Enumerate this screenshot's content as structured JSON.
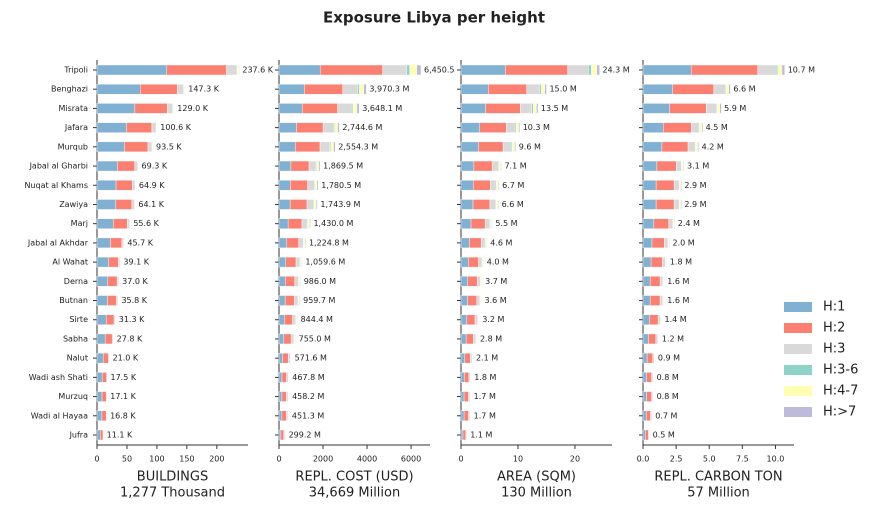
{
  "title": "Exposure Libya per height",
  "chart_data": [
    {
      "type": "bar",
      "horizontal": true,
      "xlabel": "BUILDINGS",
      "xlabel_note": "1,277 Thousand",
      "categories": [
        "Tripoli",
        "Benghazi",
        "Misrata",
        "Jafara",
        "Murqub",
        "Jabal al Gharbi",
        "Nuqat al Khams",
        "Zawiya",
        "Marj",
        "Jabal al Akhdar",
        "Al Wahat",
        "Derna",
        "Butnan",
        "Sirte",
        "Sabha",
        "Nalut",
        "Wadi ash Shati",
        "Murzuq",
        "Wadi al Hayaa",
        "Jufra"
      ],
      "xlim": [
        0,
        252
      ],
      "xticks": [
        0,
        50,
        100,
        150,
        200
      ],
      "series": [
        {
          "name": "H:1",
          "color": "#80b1d3",
          "values": [
            116.4,
            72.2,
            63.2,
            49.3,
            45.8,
            34.0,
            31.8,
            31.4,
            27.2,
            22.4,
            19.2,
            18.1,
            17.5,
            15.3,
            13.6,
            10.3,
            8.6,
            8.4,
            8.2,
            5.4
          ]
        },
        {
          "name": "H:2",
          "color": "#fb8072",
          "values": [
            99.8,
            61.9,
            54.2,
            42.3,
            39.3,
            29.1,
            27.3,
            26.9,
            23.4,
            19.2,
            16.4,
            15.5,
            15.0,
            13.1,
            11.7,
            8.8,
            7.4,
            7.2,
            7.1,
            4.7
          ]
        },
        {
          "name": "H:3",
          "color": "#d9d9d9",
          "values": [
            16.6,
            10.3,
            9.0,
            7.0,
            6.5,
            4.9,
            4.5,
            4.5,
            3.9,
            3.2,
            2.7,
            2.6,
            2.5,
            2.2,
            1.9,
            1.5,
            1.2,
            1.2,
            1.2,
            0.8
          ]
        },
        {
          "name": "H:3-6",
          "color": "#8dd3c7",
          "values": [
            1.2,
            0.7,
            0.6,
            0.5,
            0.5,
            0.3,
            0.3,
            0.3,
            0.3,
            0.2,
            0.2,
            0.2,
            0.2,
            0.2,
            0.1,
            0.1,
            0.1,
            0.1,
            0.1,
            0.1
          ]
        },
        {
          "name": "H:4-7",
          "color": "#ffffb3",
          "values": [
            2.4,
            1.5,
            1.3,
            1.0,
            0.9,
            0.7,
            0.6,
            0.6,
            0.6,
            0.5,
            0.4,
            0.4,
            0.4,
            0.3,
            0.3,
            0.2,
            0.2,
            0.2,
            0.2,
            0.1
          ]
        },
        {
          "name": "H:>7",
          "color": "#bebada",
          "values": [
            1.2,
            0.7,
            0.6,
            0.5,
            0.5,
            0.3,
            0.3,
            0.3,
            0.3,
            0.2,
            0.2,
            0.2,
            0.2,
            0.2,
            0.1,
            0.1,
            0.1,
            0.1,
            0.1,
            0.1
          ]
        }
      ],
      "totals": [
        237.6,
        147.3,
        129.0,
        100.6,
        93.5,
        69.3,
        64.9,
        64.1,
        55.6,
        45.7,
        39.1,
        37.0,
        35.8,
        31.3,
        27.8,
        21.0,
        17.5,
        17.1,
        16.8,
        11.1
      ],
      "total_labels": [
        "237.6 K",
        "147.3 K",
        "129.0 K",
        "100.6 K",
        "93.5 K",
        "69.3 K",
        "64.9 K",
        "64.1 K",
        "55.6 K",
        "45.7 K",
        "39.1 K",
        "37.0 K",
        "35.8 K",
        "31.3 K",
        "27.8 K",
        "21.0 K",
        "17.5 K",
        "17.1 K",
        "16.8 K",
        "11.1 K"
      ]
    },
    {
      "type": "bar",
      "horizontal": true,
      "xlabel": "REPL. COST (USD)",
      "xlabel_note": "34,669 Million",
      "xlim": [
        0,
        6860
      ],
      "xticks": [
        0,
        2000,
        4000,
        6000
      ],
      "series": [
        {
          "values": [
            1870.6,
            1151.4,
            1057.9,
            795.9,
            740.7,
            542.2,
            516.3,
            505.7,
            414.7,
            355.2,
            307.3,
            285.9,
            278.3,
            244.9,
            219.0,
            165.8,
            135.7,
            132.9,
            130.9,
            86.8
          ]
        },
        {
          "values": [
            2838.2,
            1746.9,
            1605.2,
            1207.6,
            1123.9,
            822.6,
            783.4,
            767.3,
            629.2,
            538.9,
            466.2,
            433.8,
            422.3,
            371.5,
            332.2,
            251.5,
            205.8,
            201.6,
            198.6,
            131.6
          ]
        },
        {
          "values": [
            1096.6,
            675.0,
            620.2,
            466.6,
            434.2,
            317.8,
            302.7,
            296.5,
            243.1,
            208.2,
            180.1,
            167.6,
            163.1,
            143.5,
            128.4,
            97.2,
            79.5,
            77.9,
            76.7,
            50.9
          ]
        },
        {
          "values": [
            129.0,
            79.4,
            73.0,
            54.9,
            51.1,
            37.4,
            35.6,
            34.9,
            28.6,
            24.5,
            21.2,
            19.7,
            19.2,
            16.9,
            15.1,
            11.4,
            9.4,
            9.2,
            9.0,
            6.0
          ]
        },
        {
          "values": [
            322.5,
            198.5,
            182.4,
            137.2,
            127.7,
            93.5,
            89.0,
            87.2,
            71.5,
            61.2,
            53.0,
            49.3,
            48.0,
            42.2,
            37.8,
            28.6,
            23.4,
            22.9,
            22.6,
            15.0
          ]
        },
        {
          "values": [
            193.5,
            119.1,
            109.4,
            82.3,
            76.6,
            56.1,
            53.4,
            52.3,
            42.9,
            36.7,
            31.8,
            29.6,
            28.8,
            25.3,
            22.7,
            17.1,
            14.0,
            13.7,
            13.5,
            9.0
          ]
        }
      ],
      "totals": [
        6450.5,
        3970.3,
        3648.1,
        2744.6,
        2554.3,
        1869.5,
        1780.5,
        1743.9,
        1430.0,
        1224.8,
        1059.6,
        986.0,
        959.7,
        844.4,
        755.0,
        571.6,
        467.8,
        458.2,
        451.3,
        299.2
      ],
      "total_labels": [
        "6,450.5",
        "3,970.3 M",
        "3,648.1 M",
        "2,744.6 M",
        "2,554.3 M",
        "1,869.5 M",
        "1,780.5 M",
        "1,743.9 M",
        "1,430.0 M",
        "1,224.8 M",
        "1,059.6 M",
        "986.0 M",
        "959.7 M",
        "844.4 M",
        "755.0 M",
        "571.6 M",
        "467.8 M",
        "458.2 M",
        "451.3 M",
        "299.2 M"
      ]
    },
    {
      "type": "bar",
      "horizontal": true,
      "xlabel": "AREA (SQM)",
      "xlabel_note": "130 Million",
      "xlim": [
        0,
        26.5
      ],
      "xticks": [
        0,
        10,
        20
      ],
      "series": [
        {
          "values": [
            7.78,
            4.8,
            4.32,
            3.3,
            3.07,
            2.27,
            2.14,
            2.11,
            1.76,
            1.47,
            1.28,
            1.18,
            1.15,
            1.02,
            0.9,
            0.67,
            0.58,
            0.54,
            0.54,
            0.35
          ]
        },
        {
          "values": [
            10.94,
            6.75,
            6.08,
            4.64,
            4.32,
            3.2,
            3.02,
            2.97,
            2.48,
            2.07,
            1.8,
            1.67,
            1.62,
            1.44,
            1.26,
            0.95,
            0.81,
            0.77,
            0.77,
            0.5
          ]
        },
        {
          "values": [
            3.65,
            2.25,
            2.03,
            1.55,
            1.44,
            1.07,
            1.01,
            0.99,
            0.83,
            0.69,
            0.6,
            0.56,
            0.54,
            0.48,
            0.42,
            0.32,
            0.27,
            0.26,
            0.26,
            0.17
          ]
        },
        {
          "values": [
            0.49,
            0.3,
            0.27,
            0.21,
            0.19,
            0.14,
            0.13,
            0.13,
            0.11,
            0.09,
            0.08,
            0.07,
            0.07,
            0.06,
            0.06,
            0.04,
            0.04,
            0.03,
            0.03,
            0.02
          ]
        },
        {
          "values": [
            0.97,
            0.6,
            0.54,
            0.41,
            0.38,
            0.28,
            0.27,
            0.26,
            0.22,
            0.18,
            0.16,
            0.15,
            0.14,
            0.13,
            0.11,
            0.08,
            0.07,
            0.07,
            0.07,
            0.04
          ]
        },
        {
          "values": [
            0.49,
            0.3,
            0.27,
            0.21,
            0.19,
            0.14,
            0.13,
            0.13,
            0.11,
            0.09,
            0.08,
            0.07,
            0.07,
            0.06,
            0.06,
            0.04,
            0.04,
            0.03,
            0.03,
            0.02
          ]
        }
      ],
      "totals": [
        24.3,
        15.0,
        13.5,
        10.3,
        9.6,
        7.1,
        6.7,
        6.6,
        5.5,
        4.6,
        4.0,
        3.7,
        3.6,
        3.2,
        2.8,
        2.1,
        1.8,
        1.7,
        1.7,
        1.1
      ],
      "total_labels": [
        "24.3 M",
        "15.0 M",
        "13.5 M",
        "10.3 M",
        "9.6 M",
        "7.1 M",
        "6.7 M",
        "6.6 M",
        "5.5 M",
        "4.6 M",
        "4.0 M",
        "3.7 M",
        "3.6 M",
        "3.2 M",
        "2.8 M",
        "2.1 M",
        "1.8 M",
        "1.7 M",
        "1.7 M",
        "1.1 M"
      ]
    },
    {
      "type": "bar",
      "horizontal": true,
      "xlabel": "REPL. CARBON TON",
      "xlabel_note": "57 Million",
      "xlim": [
        0,
        11.4
      ],
      "xticks": [
        {
          "value": 0,
          "label": "0.0"
        },
        {
          "value": 2.5,
          "label": "2.5"
        },
        {
          "value": 5,
          "label": "5.0"
        },
        {
          "value": 7.5,
          "label": "7.5"
        },
        {
          "value": 10,
          "label": "10.0"
        }
      ],
      "series": [
        {
          "values": [
            3.64,
            2.24,
            2.01,
            1.53,
            1.43,
            1.05,
            0.99,
            0.99,
            0.82,
            0.68,
            0.61,
            0.54,
            0.54,
            0.48,
            0.41,
            0.31,
            0.27,
            0.27,
            0.24,
            0.17
          ]
        },
        {
          "values": [
            5.03,
            3.1,
            2.77,
            2.12,
            1.97,
            1.46,
            1.36,
            1.36,
            1.13,
            0.94,
            0.85,
            0.75,
            0.75,
            0.66,
            0.56,
            0.42,
            0.38,
            0.38,
            0.33,
            0.24
          ]
        },
        {
          "values": [
            1.39,
            0.86,
            0.77,
            0.59,
            0.55,
            0.4,
            0.38,
            0.38,
            0.31,
            0.26,
            0.23,
            0.21,
            0.21,
            0.18,
            0.16,
            0.12,
            0.1,
            0.1,
            0.09,
            0.07
          ]
        },
        {
          "values": [
            0.11,
            0.07,
            0.06,
            0.05,
            0.04,
            0.03,
            0.03,
            0.03,
            0.02,
            0.02,
            0.02,
            0.02,
            0.02,
            0.01,
            0.01,
            0.01,
            0.01,
            0.01,
            0.01,
            0.01
          ]
        },
        {
          "values": [
            0.32,
            0.2,
            0.18,
            0.14,
            0.13,
            0.09,
            0.09,
            0.09,
            0.07,
            0.06,
            0.05,
            0.05,
            0.05,
            0.04,
            0.04,
            0.03,
            0.02,
            0.02,
            0.02,
            0.01
          ]
        },
        {
          "values": [
            0.21,
            0.13,
            0.12,
            0.09,
            0.08,
            0.06,
            0.06,
            0.06,
            0.05,
            0.04,
            0.04,
            0.03,
            0.03,
            0.03,
            0.02,
            0.02,
            0.02,
            0.02,
            0.01,
            0.01
          ]
        }
      ],
      "totals": [
        10.7,
        6.6,
        5.9,
        4.5,
        4.2,
        3.1,
        2.9,
        2.9,
        2.4,
        2.0,
        1.8,
        1.6,
        1.6,
        1.4,
        1.2,
        0.9,
        0.8,
        0.8,
        0.7,
        0.5
      ],
      "total_labels": [
        "10.7 M",
        "6.6 M",
        "5.9 M",
        "4.5 M",
        "4.2 M",
        "3.1 M",
        "2.9 M",
        "2.9 M",
        "2.4 M",
        "2.0 M",
        "1.8 M",
        "1.6 M",
        "1.6 M",
        "1.4 M",
        "1.2 M",
        "0.9 M",
        "0.8 M",
        "0.8 M",
        "0.7 M",
        "0.5 M"
      ]
    }
  ]
}
